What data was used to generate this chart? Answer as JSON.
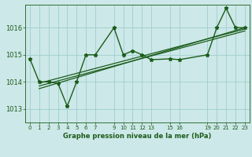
{
  "title": "Graphe pression niveau de la mer (hPa)",
  "background_color": "#cde8e8",
  "grid_color": "#9ecece",
  "line_color": "#1a5c1a",
  "xlim": [
    -0.5,
    23.5
  ],
  "ylim": [
    1012.5,
    1016.85
  ],
  "yticks": [
    1013,
    1014,
    1015,
    1016
  ],
  "xtick_positions": [
    0,
    1,
    2,
    3,
    4,
    5,
    6,
    7,
    9,
    10,
    11,
    12,
    13,
    15,
    16,
    19,
    20,
    21,
    22,
    23
  ],
  "xtick_labels": [
    "0",
    "1",
    "2",
    "3",
    "4",
    "5",
    "6",
    "7",
    "9",
    "10",
    "11",
    "12",
    "13",
    "15",
    "16",
    "19",
    "20",
    "21",
    "22",
    "23"
  ],
  "series1_x": [
    0,
    1,
    2,
    3,
    4,
    5,
    6,
    7,
    9,
    10,
    11,
    12,
    13,
    15,
    16,
    19,
    20,
    21,
    22,
    23
  ],
  "series1_y": [
    1014.85,
    1014.0,
    1014.0,
    1013.95,
    1013.1,
    1014.0,
    1015.0,
    1015.0,
    1016.0,
    1015.0,
    1015.15,
    1015.0,
    1014.82,
    1014.85,
    1014.82,
    1015.0,
    1016.0,
    1016.72,
    1016.0,
    1016.0
  ],
  "trend1_x": [
    1,
    23
  ],
  "trend1_y": [
    1013.75,
    1016.0
  ],
  "trend2_x": [
    1,
    23
  ],
  "trend2_y": [
    1013.85,
    1015.88
  ],
  "trend3_x": [
    1,
    23
  ],
  "trend3_y": [
    1013.95,
    1015.95
  ]
}
